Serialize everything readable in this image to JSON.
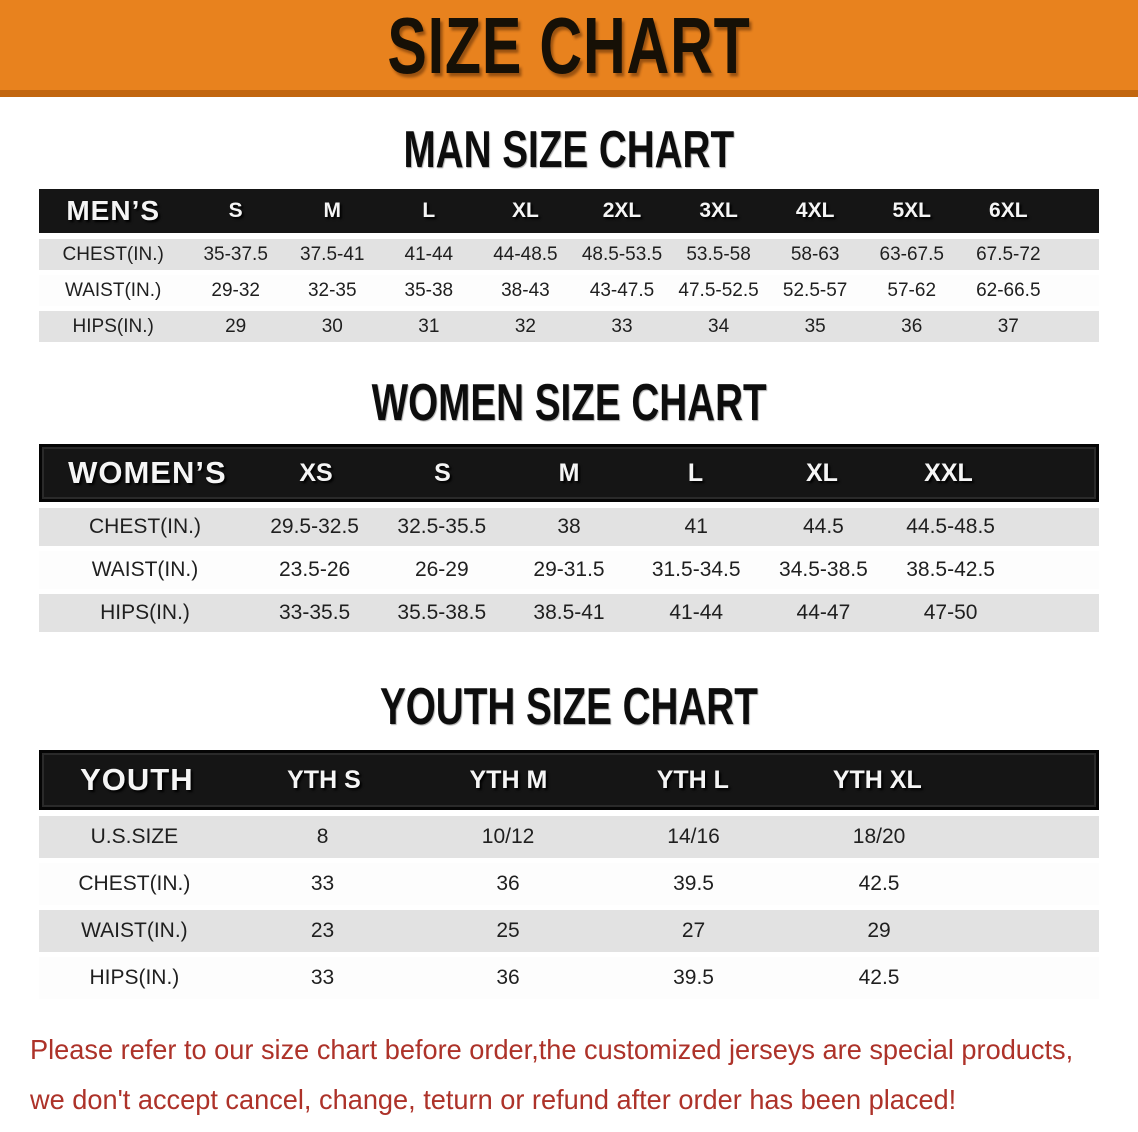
{
  "banner": {
    "title": "SIZE CHART"
  },
  "colors": {
    "banner_bg": "#E8821E",
    "banner_border": "#C2660F",
    "table_header_bg": "#151515",
    "row_alt_bg": "#E2E2E2",
    "row_bg": "#FDFDFD",
    "disclaimer_text": "#AD3229"
  },
  "men": {
    "title": "MAN SIZE CHART",
    "corner_label": "MEN’S",
    "sizes": [
      "S",
      "M",
      "L",
      "XL",
      "2XL",
      "3XL",
      "4XL",
      "5XL",
      "6XL"
    ],
    "rows": [
      {
        "label": "CHEST(IN.)",
        "values": [
          "35-37.5",
          "37.5-41",
          "41-44",
          "44-48.5",
          "48.5-53.5",
          "53.5-58",
          "58-63",
          "63-67.5",
          "67.5-72"
        ]
      },
      {
        "label": "WAIST(IN.)",
        "values": [
          "29-32",
          "32-35",
          "35-38",
          "38-43",
          "43-47.5",
          "47.5-52.5",
          "52.5-57",
          "57-62",
          "62-66.5"
        ]
      },
      {
        "label": "HIPS(IN.)",
        "values": [
          "29",
          "30",
          "31",
          "32",
          "33",
          "34",
          "35",
          "36",
          "37"
        ]
      }
    ]
  },
  "women": {
    "title": "WOMEN SIZE CHART",
    "corner_label": "WOMEN’S",
    "sizes": [
      "XS",
      "S",
      "M",
      "L",
      "XL",
      "XXL"
    ],
    "rows": [
      {
        "label": "CHEST(IN.)",
        "values": [
          "29.5-32.5",
          "32.5-35.5",
          "38",
          "41",
          "44.5",
          "44.5-48.5"
        ]
      },
      {
        "label": "WAIST(IN.)",
        "values": [
          "23.5-26",
          "26-29",
          "29-31.5",
          "31.5-34.5",
          "34.5-38.5",
          "38.5-42.5"
        ]
      },
      {
        "label": "HIPS(IN.)",
        "values": [
          "33-35.5",
          "35.5-38.5",
          "38.5-41",
          "41-44",
          "44-47",
          "47-50"
        ]
      }
    ]
  },
  "youth": {
    "title": "YOUTH SIZE CHART",
    "corner_label": "YOUTH",
    "sizes": [
      "YTH S",
      "YTH M",
      "YTH L",
      "YTH XL"
    ],
    "rows": [
      {
        "label": "U.S.SIZE",
        "values": [
          "8",
          "10/12",
          "14/16",
          "18/20"
        ]
      },
      {
        "label": "CHEST(IN.)",
        "values": [
          "33",
          "36",
          "39.5",
          "42.5"
        ]
      },
      {
        "label": "WAIST(IN.)",
        "values": [
          "23",
          "25",
          "27",
          "29"
        ]
      },
      {
        "label": "HIPS(IN.)",
        "values": [
          "33",
          "36",
          "39.5",
          "42.5"
        ]
      }
    ]
  },
  "disclaimer": {
    "line1": "Please refer to our size chart before order,the customized jerseys are special products,",
    "line2": "we don't accept cancel, change, teturn or refund after order has been placed!"
  }
}
